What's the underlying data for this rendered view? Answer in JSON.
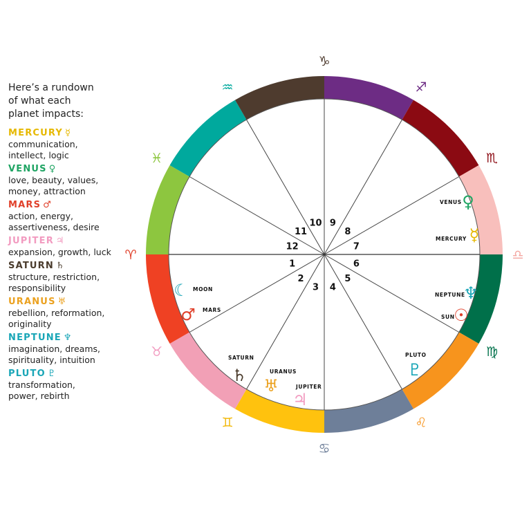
{
  "legend": {
    "intro": [
      "Here’s a rundown",
      "of what each",
      "planet impacts:"
    ],
    "planets": [
      {
        "name": "MERCURY",
        "symbol": "☿",
        "color": "#E6B800",
        "lines": [
          "communication,",
          "intellect, logic"
        ]
      },
      {
        "name": "VENUS",
        "symbol": "♀",
        "color": "#1FA463",
        "lines": [
          "love, beauty, values,",
          "money, attraction"
        ]
      },
      {
        "name": "MARS",
        "symbol": "♂",
        "color": "#E0402A",
        "lines": [
          "action, energy,",
          "assertiveness, desire"
        ]
      },
      {
        "name": "JUPITER",
        "symbol": "♃",
        "color": "#F29BC0",
        "lines": [
          "expansion, growth, luck"
        ]
      },
      {
        "name": "SATURN",
        "symbol": "♄",
        "color": "#4A3B2C",
        "lines": [
          "structure, restriction,",
          "responsibility"
        ]
      },
      {
        "name": "URANUS",
        "symbol": "♅",
        "color": "#EBA11F",
        "lines": [
          "rebellion, reformation,",
          "originality"
        ]
      },
      {
        "name": "NEPTUNE",
        "symbol": "♆",
        "color": "#1AA6B7",
        "lines": [
          "imagination, dreams,",
          "spirituality, intuition"
        ]
      },
      {
        "name": "PLUTO",
        "symbol": "♇",
        "color": "#1AA6B7",
        "lines": [
          "transformation,",
          "power, rebirth"
        ]
      }
    ]
  },
  "wheel": {
    "segments": [
      {
        "color": "#8DC63F"
      },
      {
        "color": "#00A99D"
      },
      {
        "color": "#4E3B2E"
      },
      {
        "color": "#6D2C84"
      },
      {
        "color": "#8B0A12"
      },
      {
        "color": "#F8BFBC"
      },
      {
        "color": "#00704A"
      },
      {
        "color": "#F7941D"
      },
      {
        "color": "#6E7F99"
      },
      {
        "color": "#FFC20E"
      },
      {
        "color": "#F2A0B6"
      },
      {
        "color": "#EF4123"
      }
    ],
    "zodiac": [
      {
        "symbol": "♈",
        "color": "#E0402A",
        "angle": 180
      },
      {
        "symbol": "♉",
        "color": "#F29BC0",
        "angle": 210
      },
      {
        "symbol": "♊",
        "color": "#F2B705",
        "angle": 240
      },
      {
        "symbol": "♋",
        "color": "#6E7F99",
        "angle": 270
      },
      {
        "symbol": "♌",
        "color": "#F7941D",
        "angle": 300
      },
      {
        "symbol": "♍",
        "color": "#00704A",
        "angle": 330
      },
      {
        "symbol": "♎",
        "color": "#F4A6A0",
        "angle": 0
      },
      {
        "symbol": "♏",
        "color": "#8B0A12",
        "angle": 30
      },
      {
        "symbol": "♐",
        "color": "#6D2C84",
        "angle": 60
      },
      {
        "symbol": "♑",
        "color": "#4E3B2E",
        "angle": 90
      },
      {
        "symbol": "♒",
        "color": "#00A99D",
        "angle": 120
      },
      {
        "symbol": "♓",
        "color": "#8DC63F",
        "angle": 150
      }
    ],
    "houses": [
      "1",
      "2",
      "3",
      "4",
      "5",
      "6",
      "7",
      "8",
      "9",
      "10",
      "11",
      "12"
    ],
    "placements": [
      {
        "label": "VENUS",
        "symbol": "♀",
        "color": "#1FA463",
        "house": 8
      },
      {
        "label": "MERCURY",
        "symbol": "☿",
        "color": "#E6B800",
        "house": 7
      },
      {
        "label": "NEPTUNE",
        "symbol": "♆",
        "color": "#1AA6B7",
        "house": 6
      },
      {
        "label": "SUN",
        "symbol": "☉",
        "color": "#E0402A",
        "house": 6
      },
      {
        "label": "PLUTO",
        "symbol": "♇",
        "color": "#1AA6B7",
        "house": 5
      },
      {
        "label": "JUPITER",
        "symbol": "♃",
        "color": "#F29BC0",
        "house": 3
      },
      {
        "label": "URANUS",
        "symbol": "♅",
        "color": "#EBA11F",
        "house": 3
      },
      {
        "label": "SATURN",
        "symbol": "♄",
        "color": "#4A3B2C",
        "house": 3
      },
      {
        "label": "MOON",
        "symbol": "☾",
        "color": "#1AA6B7",
        "house": 1
      },
      {
        "label": "MARS",
        "symbol": "♂",
        "color": "#E0402A",
        "house": 1
      }
    ]
  }
}
